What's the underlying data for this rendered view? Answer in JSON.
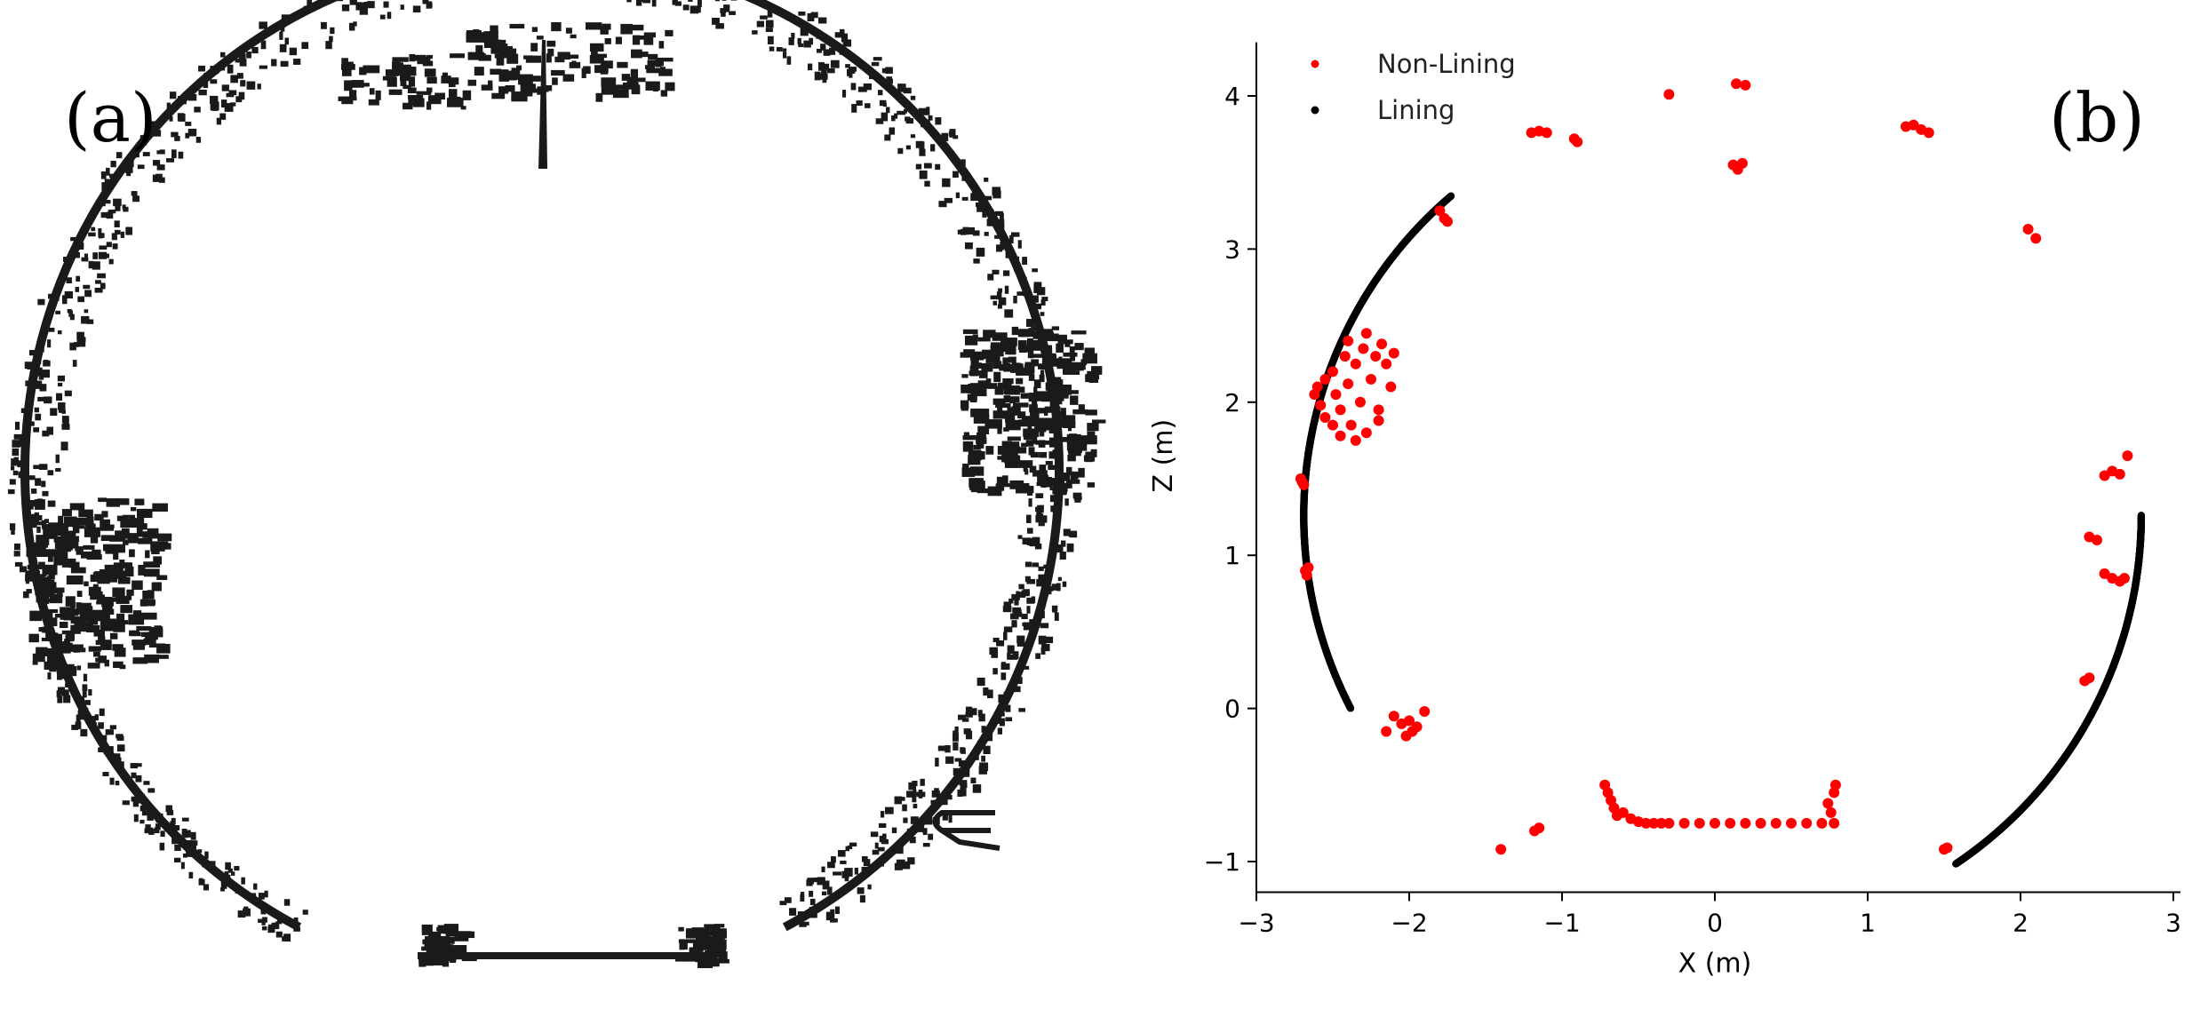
{
  "panels": [
    {
      "label": "(a)"
    },
    {
      "label": "(b)"
    }
  ],
  "chart_data": [
    {
      "type": "other",
      "panel": "(a)",
      "colors": {
        "shape": "#1a1a1a",
        "background": "#ffffff"
      }
    },
    {
      "type": "scatter",
      "panel": "(b)",
      "xlabel": "X (m)",
      "ylabel": "Z (m)",
      "xlim": [
        -3,
        3
      ],
      "ylim": [
        -1.2,
        4.35
      ],
      "xticks": [
        -3,
        -2,
        -1,
        0,
        1,
        2,
        3
      ],
      "yticks": [
        -1,
        0,
        1,
        2,
        3,
        4
      ],
      "xtick_labels": [
        "−3",
        "−2",
        "−1",
        "0",
        "1",
        "2",
        "3"
      ],
      "ytick_labels": [
        "−1",
        "0",
        "1",
        "2",
        "3",
        "4"
      ],
      "grid": false,
      "legend_position": "top-left",
      "series": [
        {
          "name": "Non-Lining",
          "color": "#ff0000",
          "points": [
            [
              -2.7,
              1.48
            ],
            [
              -2.69,
              1.46
            ],
            [
              -2.71,
              1.5
            ],
            [
              -2.68,
              0.9
            ],
            [
              -2.67,
              0.87
            ],
            [
              -2.66,
              0.92
            ],
            [
              -2.62,
              2.05
            ],
            [
              -2.6,
              2.1
            ],
            [
              -2.58,
              1.98
            ],
            [
              -2.55,
              1.9
            ],
            [
              -2.5,
              2.2
            ],
            [
              -2.48,
              2.05
            ],
            [
              -2.45,
              1.95
            ],
            [
              -2.42,
              2.3
            ],
            [
              -2.4,
              2.12
            ],
            [
              -2.38,
              1.85
            ],
            [
              -2.35,
              2.25
            ],
            [
              -2.32,
              2.0
            ],
            [
              -2.3,
              2.35
            ],
            [
              -2.28,
              1.8
            ],
            [
              -2.25,
              2.15
            ],
            [
              -2.22,
              2.3
            ],
            [
              -2.2,
              1.95
            ],
            [
              -2.18,
              2.38
            ],
            [
              -2.15,
              2.25
            ],
            [
              -2.12,
              2.1
            ],
            [
              -2.1,
              2.32
            ],
            [
              -2.45,
              1.78
            ],
            [
              -2.35,
              1.75
            ],
            [
              -2.4,
              2.4
            ],
            [
              -2.28,
              2.45
            ],
            [
              -2.55,
              2.15
            ],
            [
              -2.2,
              1.88
            ],
            [
              -2.5,
              1.85
            ],
            [
              -1.8,
              3.25
            ],
            [
              -1.77,
              3.2
            ],
            [
              -1.75,
              3.18
            ],
            [
              -1.2,
              3.76
            ],
            [
              -1.15,
              3.77
            ],
            [
              -1.1,
              3.76
            ],
            [
              -0.92,
              3.72
            ],
            [
              -0.9,
              3.7
            ],
            [
              0.12,
              3.55
            ],
            [
              0.15,
              3.52
            ],
            [
              0.18,
              3.56
            ],
            [
              0.14,
              4.08
            ],
            [
              0.2,
              4.07
            ],
            [
              -0.3,
              4.01
            ],
            [
              1.25,
              3.8
            ],
            [
              1.3,
              3.81
            ],
            [
              1.35,
              3.78
            ],
            [
              1.4,
              3.76
            ],
            [
              2.05,
              3.13
            ],
            [
              2.1,
              3.07
            ],
            [
              2.55,
              1.52
            ],
            [
              2.6,
              1.55
            ],
            [
              2.65,
              1.53
            ],
            [
              2.7,
              1.65
            ],
            [
              2.45,
              1.12
            ],
            [
              2.5,
              1.1
            ],
            [
              2.55,
              0.88
            ],
            [
              2.6,
              0.85
            ],
            [
              2.65,
              0.83
            ],
            [
              2.68,
              0.85
            ],
            [
              2.42,
              0.18
            ],
            [
              2.45,
              0.2
            ],
            [
              -2.1,
              -0.05
            ],
            [
              -2.05,
              -0.1
            ],
            [
              -2.0,
              -0.08
            ],
            [
              -1.98,
              -0.15
            ],
            [
              -2.02,
              -0.18
            ],
            [
              -1.95,
              -0.12
            ],
            [
              -2.15,
              -0.15
            ],
            [
              -1.9,
              -0.02
            ],
            [
              -1.4,
              -0.92
            ],
            [
              -1.18,
              -0.8
            ],
            [
              -1.15,
              -0.78
            ],
            [
              -0.72,
              -0.5
            ],
            [
              -0.7,
              -0.55
            ],
            [
              -0.68,
              -0.6
            ],
            [
              -0.66,
              -0.65
            ],
            [
              -0.64,
              -0.7
            ],
            [
              -0.6,
              -0.68
            ],
            [
              -0.55,
              -0.72
            ],
            [
              -0.5,
              -0.74
            ],
            [
              -0.45,
              -0.75
            ],
            [
              -0.4,
              -0.75
            ],
            [
              -0.35,
              -0.75
            ],
            [
              -0.3,
              -0.75
            ],
            [
              -0.2,
              -0.75
            ],
            [
              -0.1,
              -0.75
            ],
            [
              0.0,
              -0.75
            ],
            [
              0.1,
              -0.75
            ],
            [
              0.2,
              -0.75
            ],
            [
              0.3,
              -0.75
            ],
            [
              0.4,
              -0.75
            ],
            [
              0.5,
              -0.75
            ],
            [
              0.6,
              -0.75
            ],
            [
              0.7,
              -0.75
            ],
            [
              0.78,
              -0.75
            ],
            [
              0.76,
              -0.68
            ],
            [
              0.74,
              -0.62
            ],
            [
              0.78,
              -0.55
            ],
            [
              0.79,
              -0.5
            ],
            [
              1.5,
              -0.92
            ],
            [
              1.52,
              -0.91
            ]
          ]
        },
        {
          "name": "Lining",
          "color": "#000000",
          "circle": {
            "center": [
              0.05,
              1.26
            ],
            "radius": 2.74
          },
          "arcs": [
            [
              -2.58,
              -0.1,
              -2.3,
              4.02
            ],
            [
              0.17,
              1.26,
              1.52,
              -0.93
            ]
          ]
        }
      ]
    }
  ]
}
